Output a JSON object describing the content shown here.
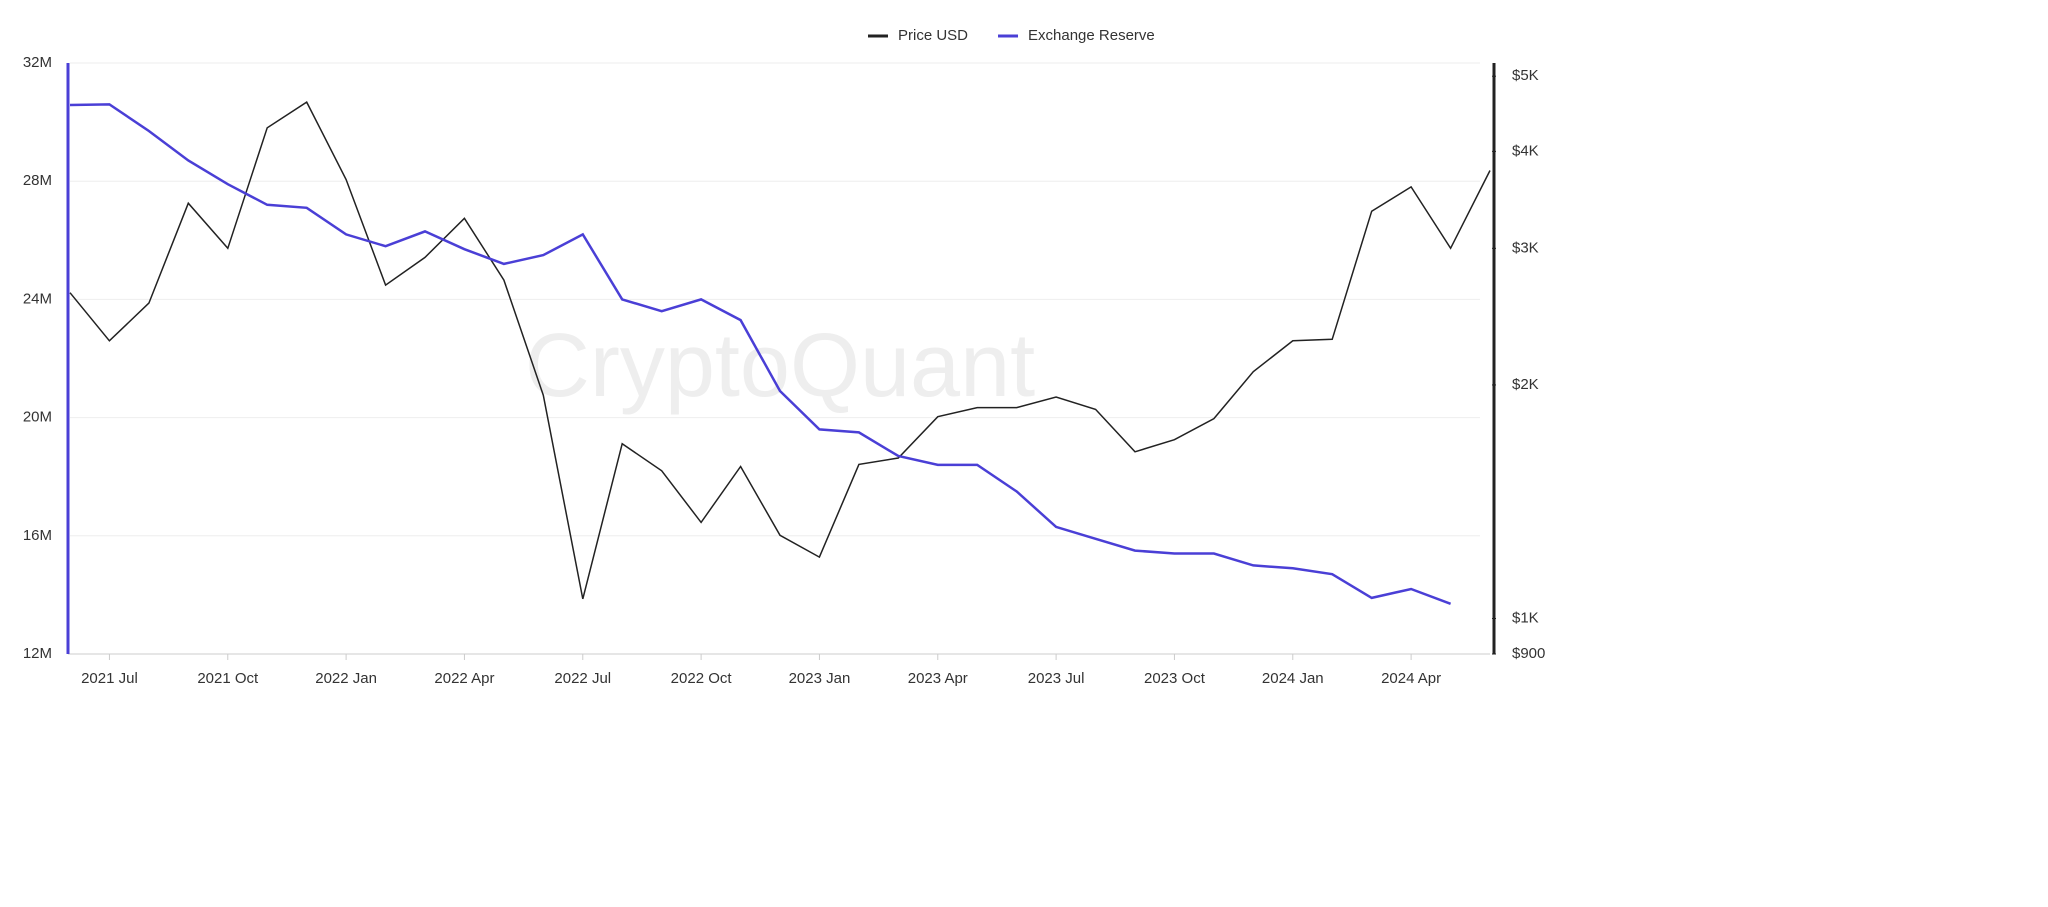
{
  "chart_data": {
    "type": "line",
    "watermark": "CryptoQuant",
    "x": [
      "2021-06",
      "2021-07",
      "2021-08",
      "2021-09",
      "2021-10",
      "2021-11",
      "2021-12",
      "2022-01",
      "2022-02",
      "2022-03",
      "2022-04",
      "2022-05",
      "2022-06",
      "2022-07",
      "2022-08",
      "2022-09",
      "2022-10",
      "2022-11",
      "2022-12",
      "2023-01",
      "2023-02",
      "2023-03",
      "2023-04",
      "2023-05",
      "2023-06",
      "2023-07",
      "2023-08",
      "2023-09",
      "2023-10",
      "2023-11",
      "2023-12",
      "2024-01",
      "2024-02",
      "2024-03",
      "2024-04",
      "2024-05",
      "2024-06"
    ],
    "xlim": [
      "2021-06",
      "2024-06"
    ],
    "xticks": [
      {
        "value": "2021-07",
        "label": "2021 Jul"
      },
      {
        "value": "2021-10",
        "label": "2021 Oct"
      },
      {
        "value": "2022-01",
        "label": "2022 Jan"
      },
      {
        "value": "2022-04",
        "label": "2022 Apr"
      },
      {
        "value": "2022-07",
        "label": "2022 Jul"
      },
      {
        "value": "2022-10",
        "label": "2022 Oct"
      },
      {
        "value": "2023-01",
        "label": "2023 Jan"
      },
      {
        "value": "2023-04",
        "label": "2023 Apr"
      },
      {
        "value": "2023-07",
        "label": "2023 Jul"
      },
      {
        "value": "2023-10",
        "label": "2023 Oct"
      },
      {
        "value": "2024-01",
        "label": "2024 Jan"
      },
      {
        "value": "2024-04",
        "label": "2024 Apr"
      }
    ],
    "ylim": [
      12000000,
      32000000
    ],
    "yticks": [
      {
        "value": 12000000,
        "label": "12M"
      },
      {
        "value": 16000000,
        "label": "16M"
      },
      {
        "value": 20000000,
        "label": "20M"
      },
      {
        "value": 24000000,
        "label": "24M"
      },
      {
        "value": 28000000,
        "label": "28M"
      },
      {
        "value": 32000000,
        "label": "32M"
      }
    ],
    "y2lim": [
      900,
      5200
    ],
    "y2log": true,
    "y2ticks": [
      {
        "value": 900,
        "label": "$900"
      },
      {
        "value": 1000,
        "label": "$1K"
      },
      {
        "value": 2000,
        "label": "$2K"
      },
      {
        "value": 3000,
        "label": "$3K"
      },
      {
        "value": 4000,
        "label": "$4K"
      },
      {
        "value": 5000,
        "label": "$5K"
      }
    ],
    "grid": true,
    "series": [
      {
        "name": "Price USD",
        "color": "#222222",
        "axis": "y2",
        "values": [
          2630,
          2280,
          2550,
          3430,
          3000,
          4290,
          4630,
          3680,
          2690,
          2920,
          3280,
          2730,
          1940,
          1060,
          1680,
          1550,
          1330,
          1570,
          1280,
          1200,
          1580,
          1610,
          1820,
          1870,
          1870,
          1930,
          1860,
          1640,
          1700,
          1810,
          2080,
          2280,
          2290,
          3350,
          3600,
          3000,
          3780
        ]
      },
      {
        "name": "Exchange Reserve",
        "color": "#4a3fd6",
        "values": [
          30580000,
          30600000,
          29700000,
          28700000,
          27900000,
          27200000,
          27100000,
          26200000,
          25800000,
          26300000,
          25700000,
          25200000,
          25500000,
          26200000,
          24000000,
          23600000,
          24000000,
          23300000,
          20900000,
          19600000,
          19500000,
          18700000,
          18400000,
          18400000,
          17500000,
          16300000,
          15900000,
          15500000,
          15400000,
          15400000,
          15000000,
          14900000,
          14700000,
          13900000,
          14200000,
          13700000,
          null
        ]
      }
    ]
  }
}
